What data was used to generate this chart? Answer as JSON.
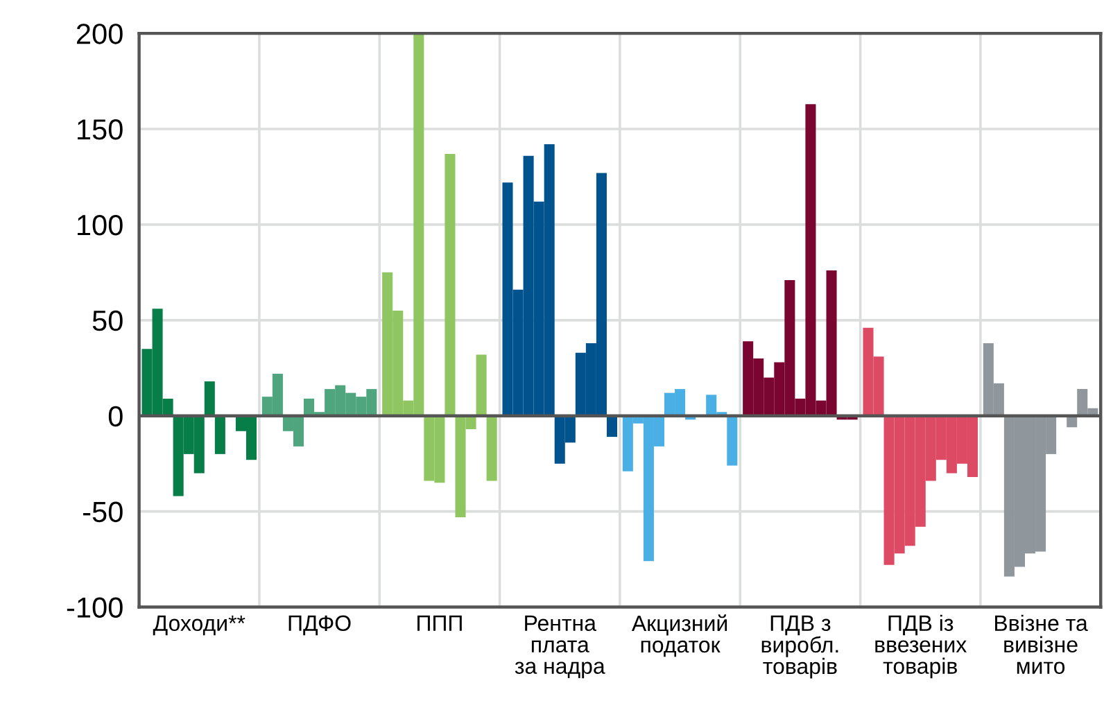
{
  "chart_data": {
    "type": "bar",
    "categories": [
      "Доходи**",
      "ПДФО",
      "ППП",
      "Рентна\nплата\nза надра",
      "Акцизний\nподаток",
      "ПДВ з\nвиробл.\nтоварів",
      "ПДВ із\nввезених\nтоварів",
      "Ввізне та\nвивізне\nмито"
    ],
    "series": [
      {
        "colors": [
          "#077d48",
          "#4fa57e",
          "#8fc661",
          "#00538c",
          "#4aafe4",
          "#7a0530",
          "#dd4a63",
          "#8f969c"
        ],
        "values": [
          35,
          10,
          75,
          122,
          -29,
          39,
          46,
          38
        ]
      },
      {
        "colors": [
          "#077d48",
          "#4fa57e",
          "#8fc661",
          "#00538c",
          "#4aafe4",
          "#7a0530",
          "#dd4a63",
          "#8f969c"
        ],
        "values": [
          56,
          22,
          55,
          66,
          -4,
          30,
          31,
          17
        ]
      },
      {
        "colors": [
          "#077d48",
          "#4fa57e",
          "#8fc661",
          "#00538c",
          "#4aafe4",
          "#7a0530",
          "#dd4a63",
          "#8f969c"
        ],
        "values": [
          9,
          -8,
          8,
          136,
          -76,
          20,
          -78,
          -84
        ]
      },
      {
        "colors": [
          "#077d48",
          "#4fa57e",
          "#8fc661",
          "#00538c",
          "#4aafe4",
          "#7a0530",
          "#dd4a63",
          "#8f969c"
        ],
        "values": [
          -42,
          -16,
          200,
          112,
          -16,
          28,
          -72,
          -79
        ]
      },
      {
        "colors": [
          "#077d48",
          "#4fa57e",
          "#8fc661",
          "#00538c",
          "#4aafe4",
          "#7a0530",
          "#dd4a63",
          "#8f969c"
        ],
        "values": [
          -20,
          9,
          -34,
          142,
          12,
          71,
          -68,
          -72
        ]
      },
      {
        "colors": [
          "#077d48",
          "#4fa57e",
          "#8fc661",
          "#00538c",
          "#4aafe4",
          "#7a0530",
          "#dd4a63",
          "#8f969c"
        ],
        "values": [
          -30,
          2,
          -35,
          -25,
          14,
          9,
          -58,
          -71
        ]
      },
      {
        "colors": [
          "#077d48",
          "#4fa57e",
          "#8fc661",
          "#00538c",
          "#4aafe4",
          "#7a0530",
          "#dd4a63",
          "#8f969c"
        ],
        "values": [
          18,
          14,
          137,
          -14,
          -2,
          163,
          -34,
          -20
        ]
      },
      {
        "colors": [
          "#077d48",
          "#4fa57e",
          "#8fc661",
          "#00538c",
          "#4aafe4",
          "#7a0530",
          "#dd4a63",
          "#8f969c"
        ],
        "values": [
          -20,
          16,
          -53,
          33,
          null,
          8,
          -23,
          null
        ]
      },
      {
        "colors": [
          "#077d48",
          "#4fa57e",
          "#8fc661",
          "#00538c",
          "#4aafe4",
          "#7a0530",
          "#dd4a63",
          "#8f969c"
        ],
        "values": [
          null,
          12,
          -7,
          38,
          11,
          76,
          -30,
          -6
        ]
      },
      {
        "colors": [
          "#077d48",
          "#4fa57e",
          "#8fc661",
          "#00538c",
          "#4aafe4",
          "#7a0530",
          "#dd4a63",
          "#8f969c"
        ],
        "values": [
          -8,
          10,
          32,
          127,
          2,
          -2,
          -25,
          14
        ]
      },
      {
        "colors": [
          "#077d48",
          "#4fa57e",
          "#8fc661",
          "#00538c",
          "#4aafe4",
          "#7a0530",
          "#dd4a63",
          "#8f969c"
        ],
        "values": [
          -23,
          14,
          -34,
          -11,
          -26,
          -2,
          -32,
          4
        ]
      }
    ],
    "ylim": [
      -100,
      200
    ],
    "yticks": [
      -100,
      -50,
      0,
      50,
      100,
      150,
      200
    ],
    "grid": true
  }
}
